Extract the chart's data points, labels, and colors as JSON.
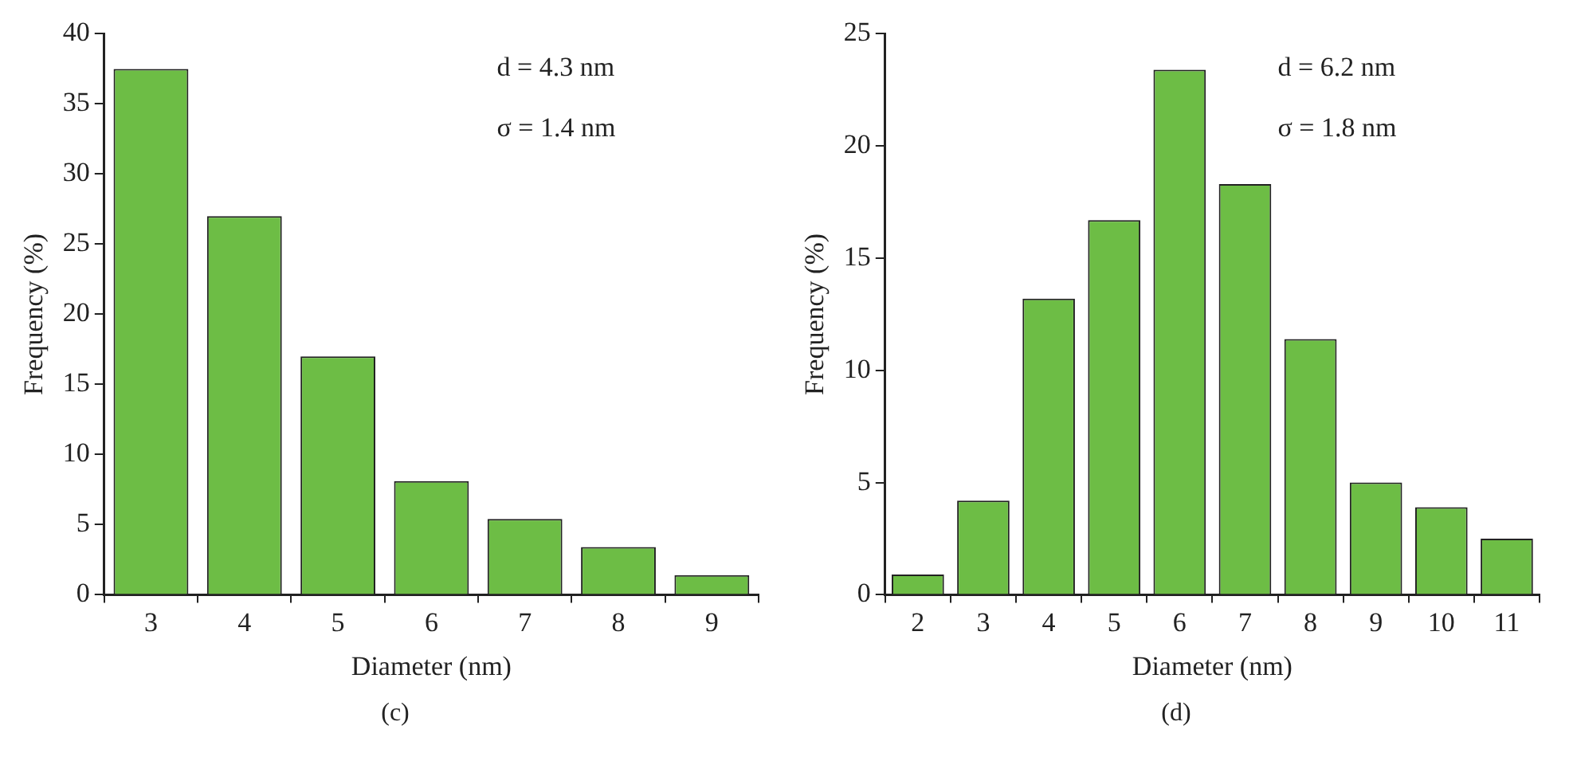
{
  "chart_data": [
    {
      "type": "bar",
      "xlabel": "Diameter (nm)",
      "ylabel": "Frequency (%)",
      "categories": [
        "3",
        "4",
        "5",
        "6",
        "7",
        "8",
        "9"
      ],
      "values": [
        37.5,
        27,
        17,
        8.1,
        5.4,
        3.4,
        1.4
      ],
      "color": "#6dbd45",
      "ylim": [
        0,
        40
      ],
      "yticks": [
        0,
        5,
        10,
        15,
        20,
        25,
        30,
        35,
        40
      ],
      "grid": false,
      "legend": false,
      "annotations": [
        "d = 4.3 nm",
        "σ = 1.4 nm",
        "(c)"
      ]
    },
    {
      "type": "bar",
      "xlabel": "Diameter (nm)",
      "ylabel": "Frequency (%)",
      "categories": [
        "2",
        "3",
        "4",
        "5",
        "6",
        "7",
        "8",
        "9",
        "10",
        "11"
      ],
      "values": [
        0.9,
        4.2,
        13.2,
        16.7,
        23.4,
        18.3,
        11.4,
        5.0,
        3.9,
        2.5
      ],
      "color": "#6dbd45",
      "ylim": [
        0,
        25
      ],
      "yticks": [
        0,
        5,
        10,
        15,
        20,
        25
      ],
      "grid": false,
      "legend": false,
      "annotations": [
        "d = 6.2 nm",
        "σ = 1.8 nm",
        "(d)"
      ]
    }
  ]
}
